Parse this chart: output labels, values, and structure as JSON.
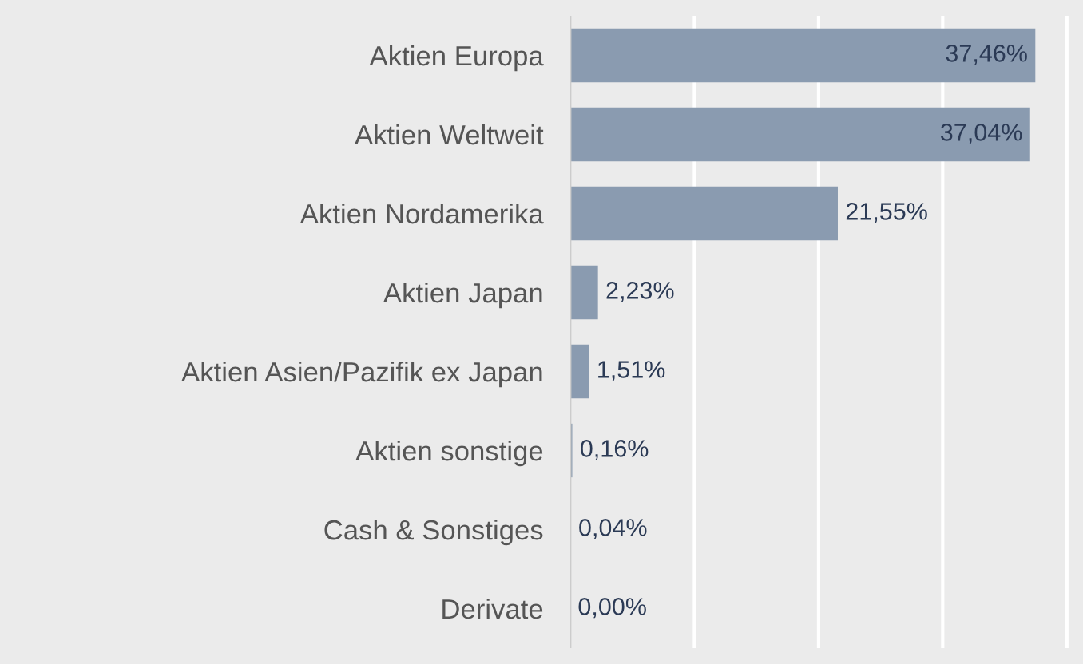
{
  "chart_data": {
    "type": "bar",
    "orientation": "horizontal",
    "categories": [
      "Aktien Europa",
      "Aktien Weltweit",
      "Aktien Nordamerika",
      "Aktien Japan",
      "Aktien Asien/Pazifik ex Japan",
      "Aktien sonstige",
      "Cash & Sonstiges",
      "Derivate"
    ],
    "values": [
      37.46,
      37.04,
      21.55,
      2.23,
      1.51,
      0.16,
      0.04,
      0.0
    ],
    "value_labels": [
      "37,46%",
      "37,04%",
      "21,55%",
      "2,23%",
      "1,51%",
      "0,16%",
      "0,04%",
      "0,00%"
    ],
    "color": "#8a9bb0",
    "xlim": [
      0,
      41.3
    ],
    "xticks": [
      {
        "value": 10,
        "label": null
      },
      {
        "value": 20,
        "label": null
      },
      {
        "value": 30,
        "label": null
      },
      {
        "value": 40,
        "label": null
      }
    ],
    "grid": "x",
    "tick_labels": "y"
  }
}
